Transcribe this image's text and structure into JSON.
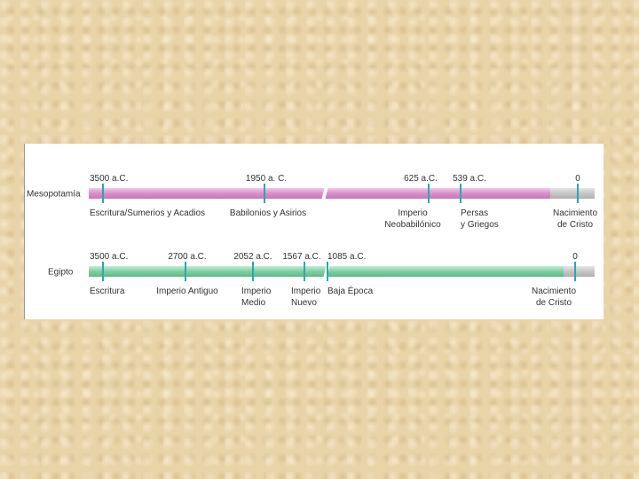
{
  "rows": [
    {
      "label": "Mesopotamía",
      "events": [
        {
          "date": "3500 a.C.",
          "label": [
            "Escritura/Sumerios y Acadios"
          ]
        },
        {
          "date": "1950 a. C.",
          "label": [
            "Babilonios y Asirios"
          ]
        },
        {
          "date": "625 a.C.",
          "label": [
            "Imperio",
            "Neobabilónico"
          ]
        },
        {
          "date": "539 a.C.",
          "label": [
            "Persas",
            "y Griegos"
          ]
        },
        {
          "date": "0",
          "label": [
            "Nacimiento",
            "de Cristo"
          ]
        }
      ]
    },
    {
      "label": "Egipto",
      "events": [
        {
          "date": "3500 a.C.",
          "label": [
            "Escritura"
          ]
        },
        {
          "date": "2700 a.C.",
          "label": [
            "Imperio Antiguo"
          ]
        },
        {
          "date": "2052 a.C.",
          "label": [
            "Imperio",
            "Medio"
          ]
        },
        {
          "date": "1567 a.C.",
          "label": [
            "Imperio",
            "Nuevo"
          ]
        },
        {
          "date": "1085 a.C.",
          "label": [
            "Baja Época"
          ]
        },
        {
          "date": "0",
          "label": [
            "Nacimiento",
            "de Cristo"
          ]
        }
      ]
    }
  ]
}
